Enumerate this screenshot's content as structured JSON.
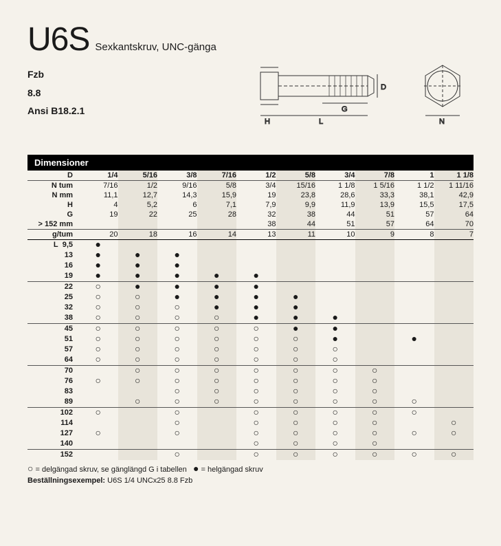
{
  "header": {
    "code": "U6S",
    "subtitle": "Sexkantskruv, UNC-gänga",
    "specs": [
      "Fzb",
      "8.8",
      "Ansi B18.2.1"
    ]
  },
  "dim_title": "Dimensioner",
  "columns_d": [
    "1/4",
    "5/16",
    "3/8",
    "7/16",
    "1/2",
    "5/8",
    "3/4",
    "7/8",
    "1",
    "1 1/8"
  ],
  "rows_spec": [
    {
      "label": "N tum",
      "v": [
        "7/16",
        "1/2",
        "9/16",
        "5/8",
        "3/4",
        "15/16",
        "1 1/8",
        "1 5/16",
        "1 1/2",
        "1 11/16"
      ]
    },
    {
      "label": "N mm",
      "v": [
        "11,1",
        "12,7",
        "14,3",
        "15,9",
        "19",
        "23,8",
        "28,6",
        "33,3",
        "38,1",
        "42,9"
      ]
    },
    {
      "label": "H",
      "v": [
        "4",
        "5,2",
        "6",
        "7,1",
        "7,9",
        "9,9",
        "11,9",
        "13,9",
        "15,5",
        "17,5"
      ]
    },
    {
      "label": "G",
      "v": [
        "19",
        "22",
        "25",
        "28",
        "32",
        "38",
        "44",
        "51",
        "57",
        "64"
      ]
    },
    {
      "label": "> 152 mm",
      "v": [
        "",
        "",
        "",
        "",
        "38",
        "44",
        "51",
        "57",
        "64",
        "70"
      ]
    },
    {
      "label": "g/tum",
      "v": [
        "20",
        "18",
        "16",
        "14",
        "13",
        "11",
        "10",
        "9",
        "8",
        "7"
      ]
    }
  ],
  "L_values": [
    "9,5",
    "13",
    "16",
    "19",
    "22",
    "25",
    "32",
    "38",
    "45",
    "51",
    "57",
    "64",
    "70",
    "76",
    "83",
    "89",
    "102",
    "114",
    "127",
    "140",
    "152"
  ],
  "matrix": [
    [
      "F",
      "",
      "",
      "",
      "",
      "",
      "",
      "",
      "",
      ""
    ],
    [
      "F",
      "F",
      "F",
      "",
      "",
      "",
      "",
      "",
      "",
      ""
    ],
    [
      "F",
      "F",
      "F",
      "",
      "",
      "",
      "",
      "",
      "",
      ""
    ],
    [
      "F",
      "F",
      "F",
      "F",
      "F",
      "",
      "",
      "",
      "",
      ""
    ],
    [
      "O",
      "F",
      "F",
      "F",
      "F",
      "",
      "",
      "",
      "",
      ""
    ],
    [
      "O",
      "O",
      "F",
      "F",
      "F",
      "F",
      "",
      "",
      "",
      ""
    ],
    [
      "O",
      "O",
      "O",
      "F",
      "F",
      "F",
      "",
      "",
      "",
      ""
    ],
    [
      "O",
      "O",
      "O",
      "O",
      "F",
      "F",
      "F",
      "",
      "",
      ""
    ],
    [
      "O",
      "O",
      "O",
      "O",
      "O",
      "F",
      "F",
      "",
      "",
      ""
    ],
    [
      "O",
      "O",
      "O",
      "O",
      "O",
      "O",
      "F",
      "",
      "F",
      ""
    ],
    [
      "O",
      "O",
      "O",
      "O",
      "O",
      "O",
      "O",
      "",
      "",
      ""
    ],
    [
      "O",
      "O",
      "O",
      "O",
      "O",
      "O",
      "O",
      "",
      "",
      ""
    ],
    [
      "",
      "O",
      "O",
      "O",
      "O",
      "O",
      "O",
      "O",
      "",
      ""
    ],
    [
      "O",
      "O",
      "O",
      "O",
      "O",
      "O",
      "O",
      "O",
      "",
      ""
    ],
    [
      "",
      "",
      "O",
      "O",
      "O",
      "O",
      "O",
      "O",
      "",
      ""
    ],
    [
      "",
      "O",
      "O",
      "O",
      "O",
      "O",
      "O",
      "O",
      "O",
      ""
    ],
    [
      "O",
      "",
      "O",
      "",
      "O",
      "O",
      "O",
      "O",
      "O",
      ""
    ],
    [
      "",
      "",
      "O",
      "",
      "O",
      "O",
      "O",
      "O",
      "",
      "O"
    ],
    [
      "O",
      "",
      "O",
      "",
      "O",
      "O",
      "O",
      "O",
      "O",
      "O"
    ],
    [
      "",
      "",
      "",
      "",
      "O",
      "O",
      "O",
      "O",
      "",
      ""
    ],
    [
      "",
      "",
      "O",
      "",
      "O",
      "O",
      "O",
      "O",
      "O",
      "O"
    ]
  ],
  "matrix_rules_after": [
    3,
    7,
    11,
    15,
    19
  ],
  "legend": {
    "open": "= delgängad skruv, se gänglängd G i tabellen",
    "full": "= helgängad skruv",
    "example_label": "Beställningsexempel:",
    "example": "U6S 1/4 UNCx25 8.8 Fzb"
  },
  "diagram_labels": {
    "D": "D",
    "G": "G",
    "L": "L",
    "H": "H",
    "N": "N"
  },
  "colors": {
    "bg": "#f5f2eb",
    "stripe": "#e8e4da",
    "text": "#1a1a1a",
    "line": "#000"
  }
}
